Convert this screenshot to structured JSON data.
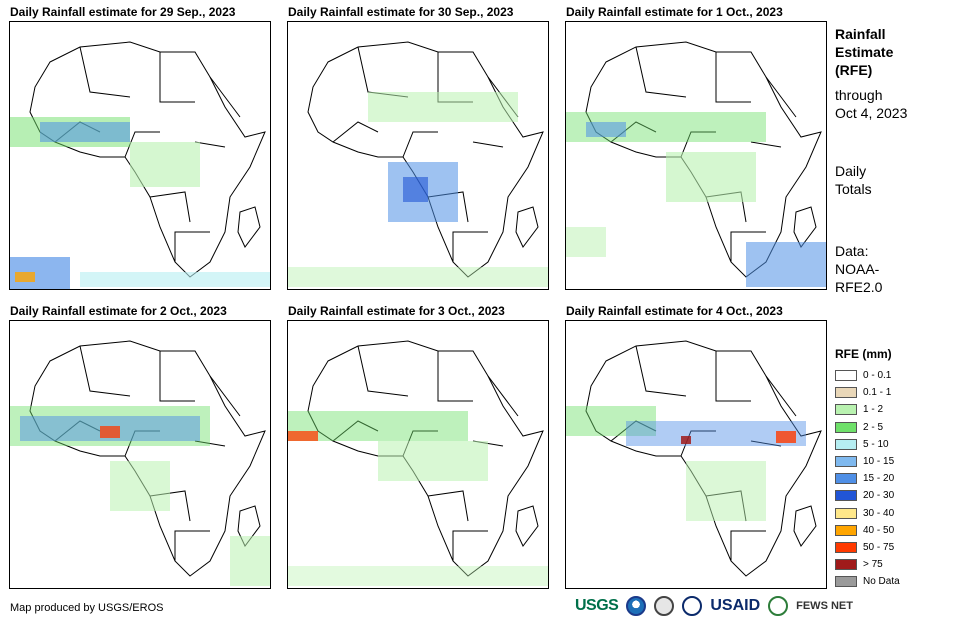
{
  "panels": [
    {
      "title": "Daily Rainfall estimate for 29 Sep., 2023"
    },
    {
      "title": "Daily Rainfall estimate for 30 Sep., 2023"
    },
    {
      "title": "Daily Rainfall estimate for 1 Oct., 2023"
    },
    {
      "title": "Daily Rainfall estimate for 2 Oct., 2023"
    },
    {
      "title": "Daily Rainfall estimate for 3 Oct., 2023"
    },
    {
      "title": "Daily Rainfall estimate for 4 Oct., 2023"
    }
  ],
  "side": {
    "title_line1": "Rainfall",
    "title_line2": "Estimate",
    "title_line3": "(RFE)",
    "through_line1": "through",
    "through_line2": "Oct 4, 2023",
    "totals_line1": "Daily",
    "totals_line2": "Totals",
    "data_line1": "Data:",
    "data_line2": "NOAA-",
    "data_line3": "RFE2.0"
  },
  "legend": {
    "title": "RFE (mm)",
    "items": [
      {
        "label": "0 - 0.1",
        "color": "#ffffff"
      },
      {
        "label": "0.1 - 1",
        "color": "#e9d7b8"
      },
      {
        "label": "1 - 2",
        "color": "#b9f2b0"
      },
      {
        "label": "2 - 5",
        "color": "#6fe06a"
      },
      {
        "label": "5 - 10",
        "color": "#b6eef2"
      },
      {
        "label": "10 - 15",
        "color": "#7fb9ef"
      },
      {
        "label": "15 - 20",
        "color": "#4f8fe6"
      },
      {
        "label": "20 - 30",
        "color": "#2155d6"
      },
      {
        "label": "30 - 40",
        "color": "#ffe88a"
      },
      {
        "label": "40 - 50",
        "color": "#ffa500"
      },
      {
        "label": "50 - 75",
        "color": "#ff3a00"
      },
      {
        "label": "> 75",
        "color": "#a01a1a"
      },
      {
        "label": "No Data",
        "color": "#9a9a9a"
      }
    ]
  },
  "footer": {
    "credit": "Map produced by USGS/EROS"
  },
  "logos": {
    "usgs": "USGS",
    "usaid": "USAID",
    "fews": "FEWS NET"
  }
}
